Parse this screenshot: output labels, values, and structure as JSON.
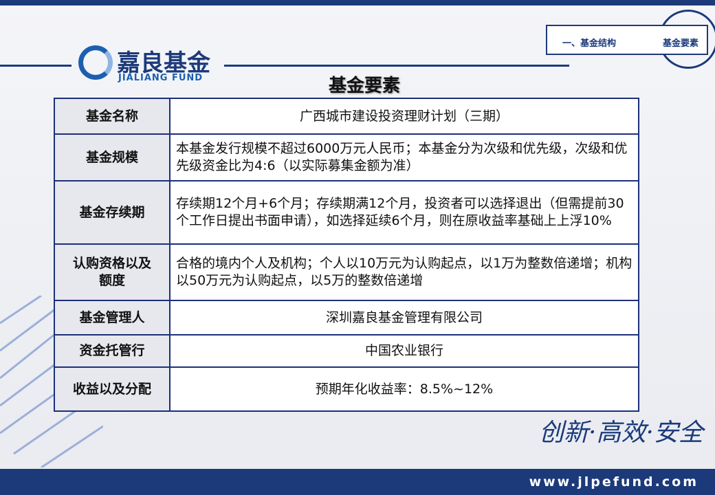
{
  "header": {
    "logo_name": "嘉良基金",
    "logo_subtitle": "JIALIANG FUND",
    "nav": [
      "一、基金结构",
      "基金要素"
    ]
  },
  "title": "基金要素",
  "table": {
    "rows": [
      [
        "基金名称",
        "广西城市建设投资理财计划（三期）"
      ],
      [
        "基金规模",
        "本基金发行规模不超过6000万元人民币；本基金分为次级和优先级，次级和优先级资金比为4:6（以实际募集金额为准）"
      ],
      [
        "基金存续期",
        "存续期12个月+6个月；存续期满12个月，投资者可以选择退出（但需提前30个工作日提出书面申请），如选择延续6个月，则在原收益率基础上上浮10%"
      ],
      [
        "认购资格以及额度",
        "合格的境内个人及机构；个人以10万元为认购起点，以1万为整数倍递增；机构以50万元为认购起点，以5万的整数倍递增"
      ],
      [
        "基金管理人",
        "深圳嘉良基金管理有限公司"
      ],
      [
        "资金托管行",
        "中国农业银行"
      ],
      [
        "收益以及分配",
        "预期年化收益率：8.5%~12%"
      ]
    ]
  },
  "slogan": "创新·高效·安全",
  "footer": {
    "url": "www.jlpefund.com"
  }
}
